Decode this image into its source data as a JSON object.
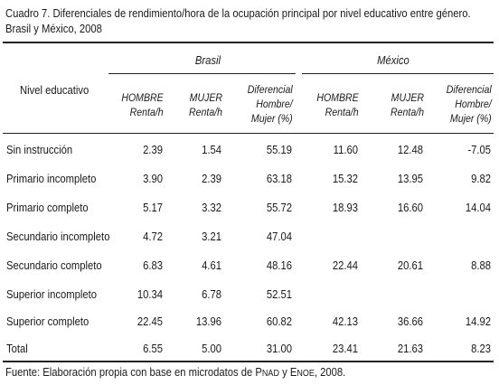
{
  "caption": {
    "line1": "Cuadro 7. Diferenciales de rendimiento/hora de la ocupación principal por nivel educativo entre género.",
    "line2": "Brasil y México, 2008"
  },
  "table": {
    "row_header": "Nivel educativo",
    "groups": [
      "Brasil",
      "México"
    ],
    "columns": [
      {
        "line1": "HOMBRE",
        "line2": "Renta/h",
        "line3": ""
      },
      {
        "line1": "MUJER",
        "line2": "Renta/h",
        "line3": ""
      },
      {
        "line1": "Diferencial",
        "line2": "Hombre/",
        "line3": "Mujer (%)"
      },
      {
        "line1": "HOMBRE",
        "line2": "Renta/h",
        "line3": ""
      },
      {
        "line1": "MUJER",
        "line2": "Renta/h",
        "line3": ""
      },
      {
        "line1": "Diferencial",
        "line2": "Hombre/",
        "line3": "Mujer (%)"
      }
    ],
    "rows": [
      {
        "label": "Sin instrucción",
        "values": [
          "2.39",
          "1.54",
          "55.19",
          "11.60",
          "12.48",
          "-7.05"
        ]
      },
      {
        "label": "Primario incompleto",
        "values": [
          "3.90",
          "2.39",
          "63.18",
          "15.32",
          "13.95",
          "9.82"
        ]
      },
      {
        "label": "Primario completo",
        "values": [
          "5.17",
          "3.32",
          "55.72",
          "18.93",
          "16.60",
          "14.04"
        ]
      },
      {
        "label": "Secundario incompleto",
        "values": [
          "4.72",
          "3.21",
          "47.04",
          "",
          "",
          ""
        ]
      },
      {
        "label": "Secundario completo",
        "values": [
          "6.83",
          "4.61",
          "48.16",
          "22.44",
          "20.61",
          "8.88"
        ]
      },
      {
        "label": "Superior incompleto",
        "values": [
          "10.34",
          "6.78",
          "52.51",
          "",
          "",
          ""
        ]
      },
      {
        "label": "Superior completo",
        "values": [
          "22.45",
          "13.96",
          "60.82",
          "42.13",
          "36.66",
          "14.92"
        ]
      },
      {
        "label": "Total",
        "values": [
          "6.55",
          "5.00",
          "31.00",
          "23.41",
          "21.63",
          "8.23"
        ]
      }
    ]
  },
  "source": {
    "prefix": "Fuente: Elaboración propia con base en microdatos de ",
    "pnad_cap": "P",
    "pnad_rest": "NAD",
    "middle": " y ",
    "enoe_cap": "E",
    "enoe_rest": "NOE",
    "suffix": ", 2008."
  }
}
